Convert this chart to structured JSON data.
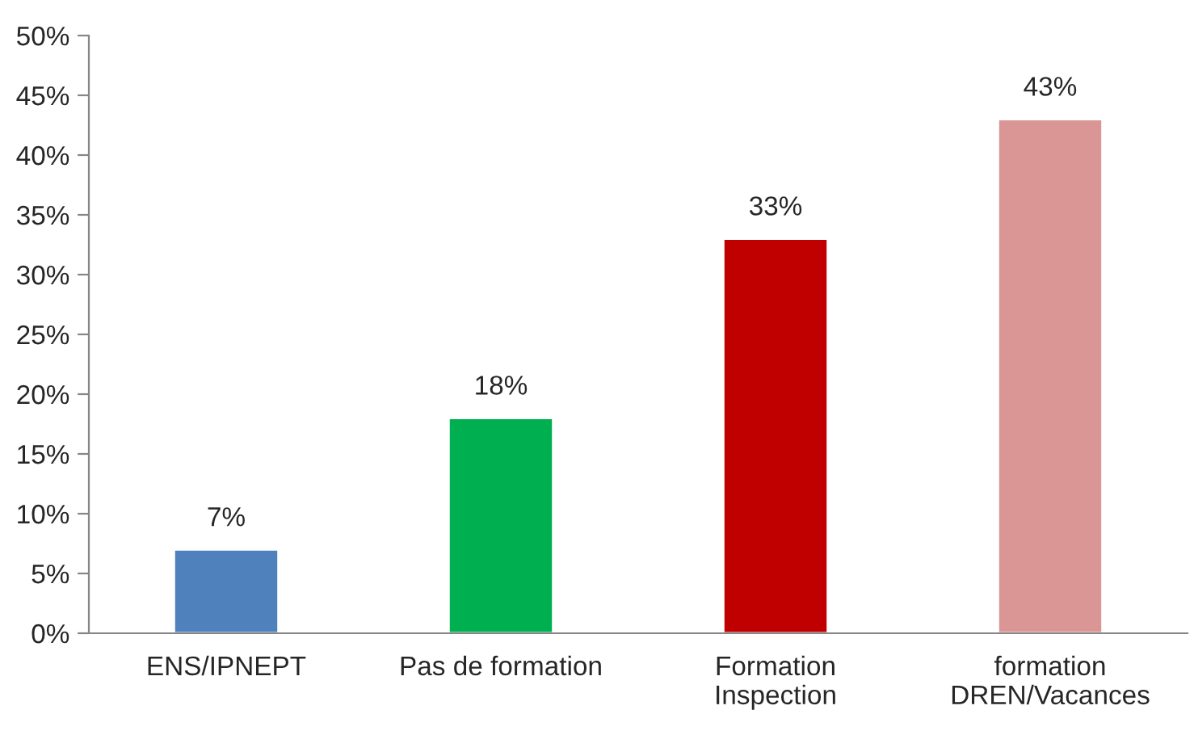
{
  "chart_data": {
    "type": "bar",
    "categories": [
      "ENS/IPNEPT",
      "Pas de formation",
      "Formation\nInspection",
      "formation\nDREN/Vacances"
    ],
    "values": [
      7,
      18,
      33,
      43
    ],
    "colors": [
      "#4f81bd",
      "#00b050",
      "#c00000",
      "#d99694"
    ],
    "value_labels": [
      "7%",
      "18%",
      "33%",
      "43%"
    ],
    "ylim": [
      0,
      50
    ],
    "yticks": [
      {
        "value": 0,
        "label": "0%"
      },
      {
        "value": 5,
        "label": "5%"
      },
      {
        "value": 10,
        "label": "10%"
      },
      {
        "value": 15,
        "label": "15%"
      },
      {
        "value": 20,
        "label": "20%"
      },
      {
        "value": 25,
        "label": "25%"
      },
      {
        "value": 30,
        "label": "30%"
      },
      {
        "value": 35,
        "label": "35%"
      },
      {
        "value": 40,
        "label": "40%"
      },
      {
        "value": 45,
        "label": "45%"
      },
      {
        "value": 50,
        "label": "50%"
      }
    ],
    "grid": false,
    "legend": false
  }
}
